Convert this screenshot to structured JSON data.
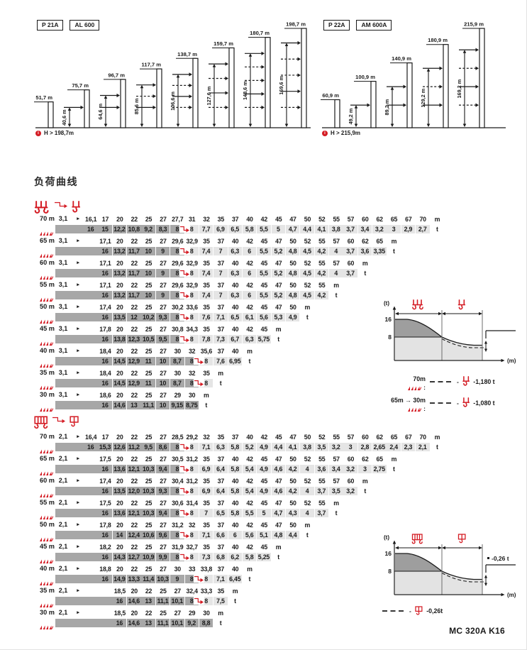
{
  "page": {
    "section_title": "负荷曲线",
    "footer": "MC 320A K16"
  },
  "colors": {
    "red": "#d41c24",
    "dark_cell": "#a7a7a7",
    "light_cell": "#e5e5e5",
    "line": "#1a1a1a"
  },
  "diagrams": [
    {
      "tags": [
        "P 21A",
        "AL 600"
      ],
      "note": "H > 198,7m",
      "unit": "m",
      "towers": [
        {
          "label": "51,7",
          "h": 51.7
        },
        {
          "label": "75,7",
          "h": 75.7,
          "vlabel": "40,6",
          "v": 40.6,
          "arrows": [
            "solid"
          ]
        },
        {
          "label": "96,7",
          "h": 96.7,
          "vlabel": "64,6",
          "v": 64.6,
          "arrows": [
            "solid",
            "solid"
          ]
        },
        {
          "label": "117,7",
          "h": 117.7,
          "vlabel": "85,6",
          "v": 85.6,
          "arrows": [
            "solid",
            "dashed",
            "solid"
          ]
        },
        {
          "label": "138,7",
          "h": 138.7,
          "vlabel": "106,6",
          "v": 106.6,
          "arrows": [
            "solid",
            "dashed",
            "solid",
            "dashed"
          ]
        },
        {
          "label": "159,7",
          "h": 159.7,
          "vlabel": "127,6",
          "v": 127.6,
          "arrows": [
            "solid",
            "dashed",
            "solid",
            "dashed"
          ]
        },
        {
          "label": "180,7",
          "h": 180.7,
          "vlabel": "148,6",
          "v": 148.6,
          "arrows": [
            "solid",
            "dashed",
            "dashed",
            "solid",
            "dashed"
          ]
        },
        {
          "label": "198,7",
          "h": 198.7,
          "vlabel": "169,6",
          "v": 169.6,
          "arrows": [
            "solid",
            "dashed",
            "dashed",
            "solid",
            "dashed"
          ]
        }
      ]
    },
    {
      "tags": [
        "P 22A",
        "AM 600A"
      ],
      "note": "H > 215,9m",
      "unit": "m",
      "towers": [
        {
          "label": "60,9",
          "h": 60.9
        },
        {
          "label": "100,9",
          "h": 100.9,
          "vlabel": "49,2",
          "v": 49.2,
          "arrows": [
            "solid"
          ]
        },
        {
          "label": "140,9",
          "h": 140.9,
          "vlabel": "89,2",
          "v": 89.2,
          "arrows": [
            "solid",
            "solid"
          ]
        },
        {
          "label": "180,9",
          "h": 180.9,
          "vlabel": "129,2",
          "v": 129.2,
          "arrows": [
            "solid",
            "dashed",
            "solid"
          ]
        },
        {
          "label": "215,9",
          "h": 215.9,
          "vlabel": "169,2",
          "v": 169.2,
          "arrows": [
            "solid",
            "dashed",
            "solid",
            "dashed"
          ]
        }
      ]
    }
  ],
  "tables": [
    {
      "icon": "four-fall-hook-to-two-fall-hook",
      "unit_radius": "m",
      "unit_load": "t",
      "rows": [
        {
          "jib": "70 m",
          "min": "3,1",
          "start": 0,
          "radii": [
            "16,1",
            "17",
            "20",
            "22",
            "25",
            "27",
            "27,7",
            "31",
            "32",
            "35",
            "37",
            "40",
            "42",
            "45",
            "47",
            "50",
            "52",
            "55",
            "57",
            "60",
            "62",
            "65",
            "67",
            "70"
          ],
          "loads": [
            "16",
            "15",
            "12,2",
            "10,8",
            "9,2",
            "8,3",
            "8",
            "8",
            "7,7",
            "6,9",
            "6,5",
            "5,8",
            "5,5",
            "5",
            "4,7",
            "4,4",
            "4,1",
            "3,8",
            "3,7",
            "3,4",
            "3,2",
            "3",
            "2,9",
            "2,7"
          ],
          "dark": 7,
          "arrow": 6
        },
        {
          "jib": "65 m",
          "min": "3,1",
          "start": 1,
          "radii": [
            "17,1",
            "20",
            "22",
            "25",
            "27",
            "29,6",
            "32,9",
            "35",
            "37",
            "40",
            "42",
            "45",
            "47",
            "50",
            "52",
            "55",
            "57",
            "60",
            "62",
            "65"
          ],
          "loads": [
            "16",
            "13,2",
            "11,7",
            "10",
            "9",
            "8",
            "8",
            "7,4",
            "7",
            "6,3",
            "6",
            "5,5",
            "5,2",
            "4,8",
            "4,5",
            "4,2",
            "4",
            "3,7",
            "3,6",
            "3,35"
          ],
          "dark": 6,
          "arrow": 5
        },
        {
          "jib": "60 m",
          "min": "3,1",
          "start": 1,
          "radii": [
            "17,1",
            "20",
            "22",
            "25",
            "27",
            "29,6",
            "32,9",
            "35",
            "37",
            "40",
            "42",
            "45",
            "47",
            "50",
            "52",
            "55",
            "57",
            "60"
          ],
          "loads": [
            "16",
            "13,2",
            "11,7",
            "10",
            "9",
            "8",
            "8",
            "7,4",
            "7",
            "6,3",
            "6",
            "5,5",
            "5,2",
            "4,8",
            "4,5",
            "4,2",
            "4",
            "3,7"
          ],
          "dark": 6,
          "arrow": 5
        },
        {
          "jib": "55 m",
          "min": "3,1",
          "start": 1,
          "radii": [
            "17,1",
            "20",
            "22",
            "25",
            "27",
            "29,6",
            "32,9",
            "35",
            "37",
            "40",
            "42",
            "45",
            "47",
            "50",
            "52",
            "55"
          ],
          "loads": [
            "16",
            "13,2",
            "11,7",
            "10",
            "9",
            "8",
            "8",
            "7,4",
            "7",
            "6,3",
            "6",
            "5,5",
            "5,2",
            "4,8",
            "4,5",
            "4,2"
          ],
          "dark": 6,
          "arrow": 5
        },
        {
          "jib": "50 m",
          "min": "3,1",
          "start": 1,
          "radii": [
            "17,4",
            "20",
            "22",
            "25",
            "27",
            "30,2",
            "33,6",
            "35",
            "37",
            "40",
            "42",
            "45",
            "47",
            "50"
          ],
          "loads": [
            "16",
            "13,5",
            "12",
            "10,2",
            "9,3",
            "8",
            "8",
            "7,6",
            "7,1",
            "6,5",
            "6,1",
            "5,6",
            "5,3",
            "4,9"
          ],
          "dark": 6,
          "arrow": 5
        },
        {
          "jib": "45 m",
          "min": "3,1",
          "start": 1,
          "radii": [
            "17,8",
            "20",
            "22",
            "25",
            "27",
            "30,8",
            "34,3",
            "35",
            "37",
            "40",
            "42",
            "45"
          ],
          "loads": [
            "16",
            "13,8",
            "12,3",
            "10,5",
            "9,5",
            "8",
            "8",
            "7,8",
            "7,3",
            "6,7",
            "6,3",
            "5,75"
          ],
          "dark": 6,
          "arrow": 5
        },
        {
          "jib": "40 m",
          "min": "3,1",
          "start": 1,
          "radii": [
            "18,4",
            "20",
            "22",
            "25",
            "27",
            "30",
            "32",
            "35,6",
            "37",
            "40"
          ],
          "loads": [
            "16",
            "14,5",
            "12,9",
            "11",
            "10",
            "8,7",
            "8",
            "8",
            "7,6",
            "6,95"
          ],
          "dark": 7,
          "arrow": 6
        },
        {
          "jib": "35 m",
          "min": "3,1",
          "start": 1,
          "radii": [
            "18,4",
            "20",
            "22",
            "25",
            "27",
            "30",
            "32",
            "35"
          ],
          "loads": [
            "16",
            "14,5",
            "12,9",
            "11",
            "10",
            "8,7",
            "8",
            "8"
          ],
          "dark": 7,
          "arrow": 6
        },
        {
          "jib": "30 m",
          "min": "3,1",
          "start": 1,
          "radii": [
            "18,6",
            "20",
            "22",
            "25",
            "27",
            "29",
            "30"
          ],
          "loads": [
            "16",
            "14,6",
            "13",
            "11,1",
            "10",
            "9,15",
            "8,75"
          ],
          "dark": 7,
          "arrow": -1
        }
      ]
    },
    {
      "icon": "four-fall-trolley-to-two-fall-trolley",
      "unit_radius": "m",
      "unit_load": "t",
      "rows": [
        {
          "jib": "70 m",
          "min": "2,1",
          "start": 0,
          "radii": [
            "16,4",
            "17",
            "20",
            "22",
            "25",
            "27",
            "28,5",
            "29,2",
            "32",
            "35",
            "37",
            "40",
            "42",
            "45",
            "47",
            "50",
            "52",
            "55",
            "57",
            "60",
            "62",
            "65",
            "67",
            "70"
          ],
          "loads": [
            "16",
            "15,3",
            "12,6",
            "11,2",
            "9,5",
            "8,6",
            "8",
            "8",
            "7,1",
            "6,3",
            "5,8",
            "5,2",
            "4,9",
            "4,4",
            "4,1",
            "3,8",
            "3,5",
            "3,2",
            "3",
            "2,8",
            "2,65",
            "2,4",
            "2,3",
            "2,1"
          ],
          "dark": 7,
          "arrow": 6
        },
        {
          "jib": "65 m",
          "min": "2,1",
          "start": 1,
          "radii": [
            "17,5",
            "20",
            "22",
            "25",
            "27",
            "30,5",
            "31,2",
            "35",
            "37",
            "40",
            "42",
            "45",
            "47",
            "50",
            "52",
            "55",
            "57",
            "60",
            "62",
            "65"
          ],
          "loads": [
            "16",
            "13,6",
            "12,1",
            "10,3",
            "9,4",
            "8",
            "8",
            "6,9",
            "6,4",
            "5,8",
            "5,4",
            "4,9",
            "4,6",
            "4,2",
            "4",
            "3,6",
            "3,4",
            "3,2",
            "3",
            "2,75"
          ],
          "dark": 6,
          "arrow": 5
        },
        {
          "jib": "60 m",
          "min": "2,1",
          "start": 1,
          "radii": [
            "17,4",
            "20",
            "22",
            "25",
            "27",
            "30,4",
            "31,2",
            "35",
            "37",
            "40",
            "42",
            "45",
            "47",
            "50",
            "52",
            "55",
            "57",
            "60"
          ],
          "loads": [
            "16",
            "13,5",
            "12,0",
            "10,3",
            "9,3",
            "8",
            "8",
            "6,9",
            "6,4",
            "5,8",
            "5,4",
            "4,9",
            "4,6",
            "4,2",
            "4",
            "3,7",
            "3,5",
            "3,2"
          ],
          "dark": 6,
          "arrow": 5
        },
        {
          "jib": "55 m",
          "min": "2,1",
          "start": 1,
          "radii": [
            "17,5",
            "20",
            "22",
            "25",
            "27",
            "30,6",
            "31,4",
            "35",
            "37",
            "40",
            "42",
            "45",
            "47",
            "50",
            "52",
            "55"
          ],
          "loads": [
            "16",
            "13,6",
            "12,1",
            "10,3",
            "9,4",
            "8",
            "8",
            "7",
            "6,5",
            "5,8",
            "5,5",
            "5",
            "4,7",
            "4,3",
            "4",
            "3,7"
          ],
          "dark": 6,
          "arrow": 5
        },
        {
          "jib": "50 m",
          "min": "2,1",
          "start": 1,
          "radii": [
            "17,8",
            "20",
            "22",
            "25",
            "27",
            "31,2",
            "32",
            "35",
            "37",
            "40",
            "42",
            "45",
            "47",
            "50"
          ],
          "loads": [
            "16",
            "14",
            "12,4",
            "10,6",
            "9,6",
            "8",
            "8",
            "7,1",
            "6,6",
            "6",
            "5,6",
            "5,1",
            "4,8",
            "4,4"
          ],
          "dark": 6,
          "arrow": 5
        },
        {
          "jib": "45 m",
          "min": "2,1",
          "start": 1,
          "radii": [
            "18,2",
            "20",
            "22",
            "25",
            "27",
            "31,9",
            "32,7",
            "35",
            "37",
            "40",
            "42",
            "45"
          ],
          "loads": [
            "16",
            "14,3",
            "12,7",
            "10,9",
            "9,9",
            "8",
            "8",
            "7,3",
            "6,8",
            "6,2",
            "5,8",
            "5,25"
          ],
          "dark": 6,
          "arrow": 5
        },
        {
          "jib": "40 m",
          "min": "2,1",
          "start": 1,
          "radii": [
            "18,8",
            "20",
            "22",
            "25",
            "27",
            "30",
            "33",
            "33,8",
            "37",
            "40"
          ],
          "loads": [
            "16",
            "14,9",
            "13,3",
            "11,4",
            "10,3",
            "9",
            "8",
            "8",
            "7,1",
            "6,45"
          ],
          "dark": 7,
          "arrow": 6
        },
        {
          "jib": "35 m",
          "min": "2,1",
          "start": 2,
          "radii": [
            "18,5",
            "20",
            "22",
            "25",
            "27",
            "32,4",
            "33,3",
            "35"
          ],
          "loads": [
            "16",
            "14,6",
            "13",
            "11,1",
            "10,1",
            "8",
            "8",
            "7,5"
          ],
          "dark": 6,
          "arrow": 5
        },
        {
          "jib": "30 m",
          "min": "2,1",
          "start": 2,
          "radii": [
            "18,5",
            "20",
            "22",
            "25",
            "27",
            "29",
            "30"
          ],
          "loads": [
            "16",
            "14,6",
            "13",
            "11,1",
            "10,1",
            "9,2",
            "8,8"
          ],
          "dark": 7,
          "arrow": -1
        }
      ]
    }
  ],
  "minicharts": [
    {
      "ylabel": "(t)",
      "xlabel": "(m)",
      "ticks": [
        "16",
        "8"
      ],
      "icons": [
        "four-fall-hook",
        "two-fall-hook"
      ],
      "legend": [
        {
          "jib": "70m",
          "value": "-1,180 t",
          "icon": "two-fall-hook"
        },
        {
          "jib": "65m",
          "jib2": "30m",
          "value": "-1,080 t",
          "icon": "two-fall-hook"
        }
      ]
    },
    {
      "ylabel": "(t)",
      "xlabel": "(m)",
      "ticks": [
        "16",
        "8"
      ],
      "icons": [
        "four-fall-trolley",
        "two-fall-trolley"
      ],
      "annotation": "-0,26 t",
      "legend": [
        {
          "value": "-0,26t",
          "icon": "two-fall-trolley"
        }
      ]
    }
  ]
}
